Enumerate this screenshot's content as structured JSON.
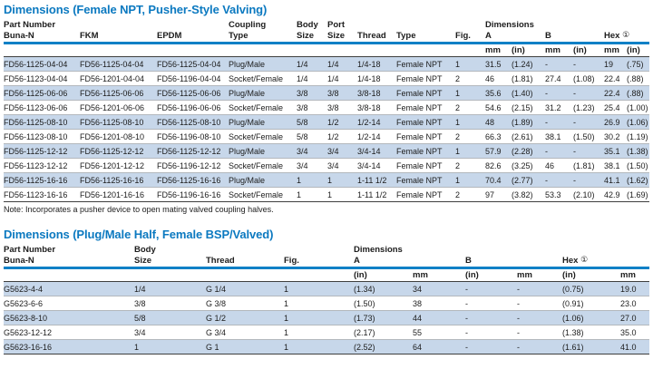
{
  "colors": {
    "title_blue": "#0b79c0",
    "rule_blue": "#1080c6",
    "row_shade": "#c7d7ea",
    "heavy_line": "#3f3f3f",
    "light_line": "#b3b8bd"
  },
  "table1": {
    "title": "Dimensions (Female NPT, Pusher-Style Valving)",
    "head": {
      "part_number": "Part Number",
      "coupling": "Coupling",
      "body": "Body",
      "port": "Port",
      "dimensions": "Dimensions",
      "buna": "Buna-N",
      "fkm": "FKM",
      "epdm": "EPDM",
      "coupling_type": "Type",
      "body_size": "Size",
      "port_size": "Size",
      "thread": "Thread",
      "type": "Type",
      "fig": "Fig.",
      "a": "A",
      "b": "B",
      "hex": "Hex",
      "hex_marker": "①",
      "units": [
        "mm",
        "(in)",
        "mm",
        "(in)",
        "mm",
        "(in)"
      ]
    },
    "rows": [
      [
        "FD56-1125-04-04",
        "FD56-1125-04-04",
        "FD56-1125-04-04",
        "Plug/Male",
        "1/4",
        "1/4",
        "1/4-18",
        "Female NPT",
        "1",
        "31.5",
        "(1.24)",
        "-",
        "-",
        "19",
        "(.75)"
      ],
      [
        "FD56-1123-04-04",
        "FD56-1201-04-04",
        "FD56-1196-04-04",
        "Socket/Female",
        "1/4",
        "1/4",
        "1/4-18",
        "Female NPT",
        "2",
        "46",
        "(1.81)",
        "27.4",
        "(1.08)",
        "22.4",
        "(.88)"
      ],
      [
        "FD56-1125-06-06",
        "FD56-1125-06-06",
        "FD56-1125-06-06",
        "Plug/Male",
        "3/8",
        "3/8",
        "3/8-18",
        "Female NPT",
        "1",
        "35.6",
        "(1.40)",
        "-",
        "-",
        "22.4",
        "(.88)"
      ],
      [
        "FD56-1123-06-06",
        "FD56-1201-06-06",
        "FD56-1196-06-06",
        "Socket/Female",
        "3/8",
        "3/8",
        "3/8-18",
        "Female NPT",
        "2",
        "54.6",
        "(2.15)",
        "31.2",
        "(1.23)",
        "25.4",
        "(1.00)"
      ],
      [
        "FD56-1125-08-10",
        "FD56-1125-08-10",
        "FD56-1125-08-10",
        "Plug/Male",
        "5/8",
        "1/2",
        "1/2-14",
        "Female NPT",
        "1",
        "48",
        "(1.89)",
        "-",
        "-",
        "26.9",
        "(1.06)"
      ],
      [
        "FD56-1123-08-10",
        "FD56-1201-08-10",
        "FD56-1196-08-10",
        "Socket/Female",
        "5/8",
        "1/2",
        "1/2-14",
        "Female NPT",
        "2",
        "66.3",
        "(2.61)",
        "38.1",
        "(1.50)",
        "30.2",
        "(1.19)"
      ],
      [
        "FD56-1125-12-12",
        "FD56-1125-12-12",
        "FD56-1125-12-12",
        "Plug/Male",
        "3/4",
        "3/4",
        "3/4-14",
        "Female NPT",
        "1",
        "57.9",
        "(2.28)",
        "-",
        "-",
        "35.1",
        "(1.38)"
      ],
      [
        "FD56-1123-12-12",
        "FD56-1201-12-12",
        "FD56-1196-12-12",
        "Socket/Female",
        "3/4",
        "3/4",
        "3/4-14",
        "Female NPT",
        "2",
        "82.6",
        "(3.25)",
        "46",
        "(1.81)",
        "38.1",
        "(1.50)"
      ],
      [
        "FD56-1125-16-16",
        "FD56-1125-16-16",
        "FD56-1125-16-16",
        "Plug/Male",
        "1",
        "1",
        "1-11 1/2",
        "Female NPT",
        "1",
        "70.4",
        "(2.77)",
        "-",
        "-",
        "41.1",
        "(1.62)"
      ],
      [
        "FD56-1123-16-16",
        "FD56-1201-16-16",
        "FD56-1196-16-16",
        "Socket/Female",
        "1",
        "1",
        "1-11 1/2",
        "Female NPT",
        "2",
        "97",
        "(3.82)",
        "53.3",
        "(2.10)",
        "42.9",
        "(1.69)"
      ]
    ],
    "note": "Note: Incorporates a pusher device to open mating valved coupling halves."
  },
  "table2": {
    "title": "Dimensions (Plug/Male Half, Female BSP/Valved)",
    "head": {
      "part_number": "Part Number",
      "body": "Body",
      "dimensions": "Dimensions",
      "buna": "Buna-N",
      "body_size": "Size",
      "thread": "Thread",
      "fig": "Fig.",
      "a": "A",
      "b": "B",
      "hex": "Hex",
      "hex_marker": "①",
      "units": [
        "(in)",
        "mm",
        "(in)",
        "mm",
        "(in)",
        "mm"
      ]
    },
    "rows": [
      [
        "G5623-4-4",
        "1/4",
        "G 1/4",
        "1",
        "(1.34)",
        "34",
        "-",
        "-",
        "(0.75)",
        "19.0"
      ],
      [
        "G5623-6-6",
        "3/8",
        "G 3/8",
        "1",
        "(1.50)",
        "38",
        "-",
        "-",
        "(0.91)",
        "23.0"
      ],
      [
        "G5623-8-10",
        "5/8",
        "G 1/2",
        "1",
        "(1.73)",
        "44",
        "-",
        "-",
        "(1.06)",
        "27.0"
      ],
      [
        "G5623-12-12",
        "3/4",
        "G 3/4",
        "1",
        "(2.17)",
        "55",
        "-",
        "-",
        "(1.38)",
        "35.0"
      ],
      [
        "G5623-16-16",
        "1",
        "G 1",
        "1",
        "(2.52)",
        "64",
        "-",
        "-",
        "(1.61)",
        "41.0"
      ]
    ]
  }
}
